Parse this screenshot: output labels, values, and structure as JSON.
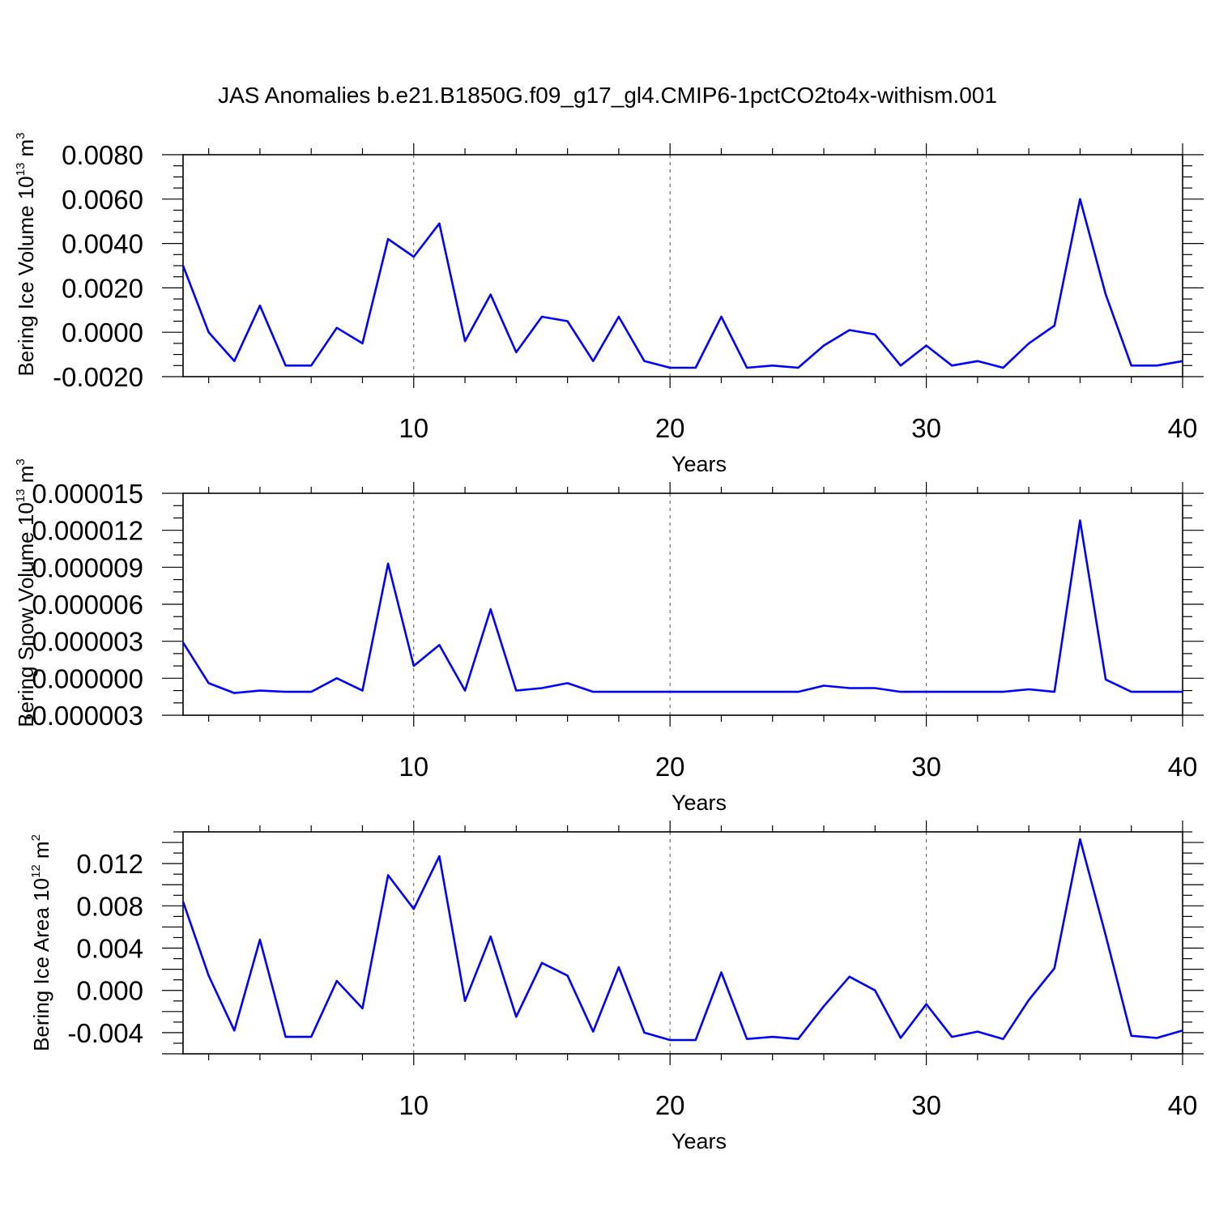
{
  "title": "JAS Anomalies b.e21.B1850G.f09_g17_gl4.CMIP6-1pctCO2to4x-withism.001",
  "colors": {
    "line": "#0000ff",
    "axis": "#000000",
    "grid": "#555555"
  },
  "chart_data": [
    {
      "type": "line",
      "title": "",
      "xlabel": "Years",
      "ylabel": "Bering Ice Volume 10",
      "ylabel_sup": "13",
      "ylabel_unit": "m",
      "ylabel_unit_sup": "3",
      "xlim": [
        1,
        40
      ],
      "ylim": [
        -0.002,
        0.008
      ],
      "xticks": [
        "10",
        "20",
        "30",
        "40"
      ],
      "yticks": [
        "0.0080",
        "0.0060",
        "0.0040",
        "0.0020",
        "0.0000",
        "-0.0020"
      ],
      "grid": "vertical dashed at x ticks",
      "x": [
        1,
        2,
        3,
        4,
        5,
        6,
        7,
        8,
        9,
        10,
        11,
        12,
        13,
        14,
        15,
        16,
        17,
        18,
        19,
        20,
        21,
        22,
        23,
        24,
        25,
        26,
        27,
        28,
        29,
        30,
        31,
        32,
        33,
        34,
        35,
        36,
        37,
        38,
        39,
        40
      ],
      "values": [
        0.003,
        0.0,
        -0.0013,
        0.0012,
        -0.0015,
        -0.0015,
        0.0002,
        -0.0005,
        0.0042,
        0.0034,
        0.0049,
        -0.0004,
        0.0017,
        -0.0009,
        0.0007,
        0.0005,
        -0.0013,
        0.0007,
        -0.0013,
        -0.0016,
        -0.0016,
        0.0007,
        -0.0016,
        -0.0015,
        -0.0016,
        -0.0006,
        0.0001,
        -0.0001,
        -0.0015,
        -0.0006,
        -0.0015,
        -0.0013,
        -0.0016,
        -0.0005,
        0.0003,
        0.006,
        0.0017,
        -0.0015,
        -0.0015,
        -0.0013
      ]
    },
    {
      "type": "line",
      "title": "",
      "xlabel": "Years",
      "ylabel": "Bering Snow Volume 10",
      "ylabel_sup": "13",
      "ylabel_unit": "m",
      "ylabel_unit_sup": "3",
      "xlim": [
        1,
        40
      ],
      "ylim": [
        -3e-06,
        1.5e-05
      ],
      "xticks": [
        "10",
        "20",
        "30",
        "40"
      ],
      "yticks": [
        "0.000015",
        "0.000012",
        "0.000009",
        "0.000006",
        "0.000003",
        "0.000000",
        "-0.000003"
      ],
      "grid": "vertical dashed at x ticks",
      "x": [
        1,
        2,
        3,
        4,
        5,
        6,
        7,
        8,
        9,
        10,
        11,
        12,
        13,
        14,
        15,
        16,
        17,
        18,
        19,
        20,
        21,
        22,
        23,
        24,
        25,
        26,
        27,
        28,
        29,
        30,
        31,
        32,
        33,
        34,
        35,
        36,
        37,
        38,
        39,
        40
      ],
      "values": [
        2.9e-06,
        -4e-07,
        -1.2e-06,
        -1e-06,
        -1.1e-06,
        -1.1e-06,
        0.0,
        -1e-06,
        9.3e-06,
        1e-06,
        2.7e-06,
        -1e-06,
        5.6e-06,
        -1e-06,
        -8e-07,
        -4e-07,
        -1.1e-06,
        -1.1e-06,
        -1.1e-06,
        -1.1e-06,
        -1.1e-06,
        -1.1e-06,
        -1.1e-06,
        -1.1e-06,
        -1.1e-06,
        -6e-07,
        -8e-07,
        -8e-07,
        -1.1e-06,
        -1.1e-06,
        -1.1e-06,
        -1.1e-06,
        -1.1e-06,
        -9e-07,
        -1.1e-06,
        1.28e-05,
        -1e-07,
        -1.1e-06,
        -1.1e-06,
        -1.1e-06
      ]
    },
    {
      "type": "line",
      "title": "",
      "xlabel": "Years",
      "ylabel": "Bering Ice Area 10",
      "ylabel_sup": "12",
      "ylabel_unit": "m",
      "ylabel_unit_sup": "2",
      "xlim": [
        1,
        40
      ],
      "ylim": [
        -0.006,
        0.015
      ],
      "xticks": [
        "10",
        "20",
        "30",
        "40"
      ],
      "yticks": [
        "0.012",
        "0.008",
        "0.004",
        "0.000",
        "-0.004"
      ],
      "grid": "vertical dashed at x ticks",
      "x": [
        1,
        2,
        3,
        4,
        5,
        6,
        7,
        8,
        9,
        10,
        11,
        12,
        13,
        14,
        15,
        16,
        17,
        18,
        19,
        20,
        21,
        22,
        23,
        24,
        25,
        26,
        27,
        28,
        29,
        30,
        31,
        32,
        33,
        34,
        35,
        36,
        37,
        38,
        39,
        40
      ],
      "values": [
        0.0084,
        0.0014,
        -0.0038,
        0.0048,
        -0.0044,
        -0.0044,
        0.0009,
        -0.0017,
        0.0109,
        0.0077,
        0.0127,
        -0.001,
        0.0051,
        -0.0025,
        0.0026,
        0.0014,
        -0.0039,
        0.0022,
        -0.004,
        -0.0047,
        -0.0047,
        0.0017,
        -0.0046,
        -0.0044,
        -0.0046,
        -0.0015,
        0.0013,
        0.0,
        -0.0045,
        -0.0013,
        -0.0044,
        -0.0039,
        -0.0046,
        -0.0009,
        0.0021,
        0.0143,
        0.0052,
        -0.0043,
        -0.0045,
        -0.0038
      ]
    }
  ]
}
